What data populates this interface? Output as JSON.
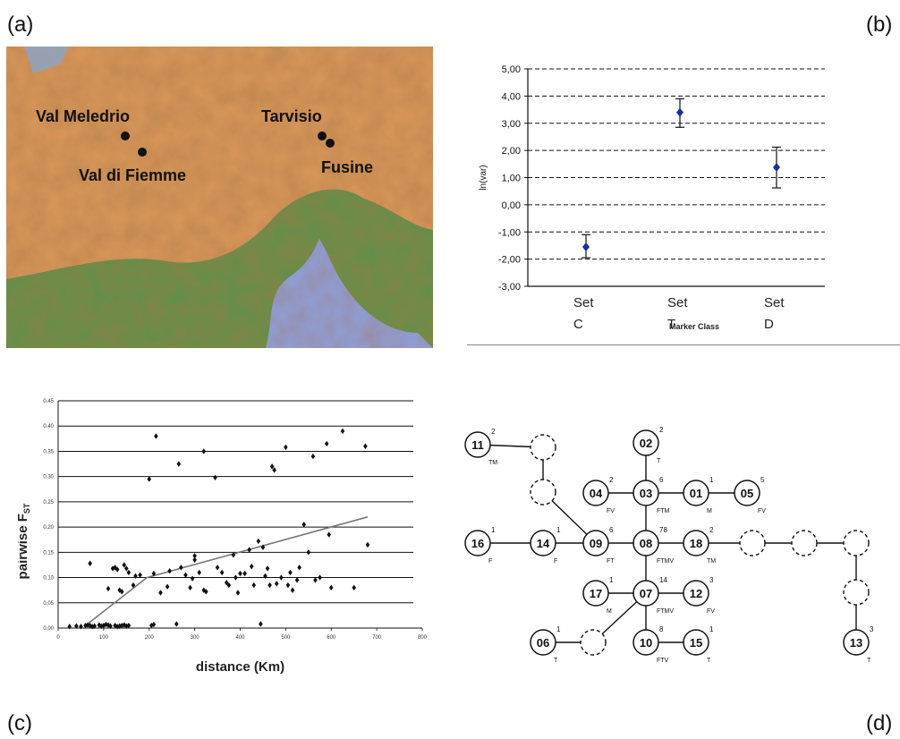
{
  "panel_labels": {
    "a": "(a)",
    "b": "(b)",
    "c": "(c)",
    "d": "(d)"
  },
  "map": {
    "places": [
      {
        "name": "Val Meledrio"
      },
      {
        "name": "Val di Fiemme"
      },
      {
        "name": "Tarvisio"
      },
      {
        "name": "Fusine"
      }
    ],
    "colors": {
      "mountain": "#d9965a",
      "plain": "#5f8f4a",
      "sea": "#8e9fd8",
      "lake": "#8aa5c8"
    }
  },
  "chart_data": [
    {
      "type": "scatter",
      "panel": "b",
      "ylabel": "ln(var)",
      "xlabel": "Marker Class",
      "categories": [
        {
          "line1": "Set",
          "line2": "C"
        },
        {
          "line1": "Set",
          "line2": "T"
        },
        {
          "line1": "Set",
          "line2": "D"
        }
      ],
      "values": [
        -1.55,
        3.4,
        1.38
      ],
      "error_low": [
        -1.95,
        2.85,
        0.62
      ],
      "error_high": [
        -1.1,
        3.9,
        2.12
      ],
      "ylim": [
        -3.0,
        5.0
      ],
      "yticks": [
        "5,00",
        "4,00",
        "3,00",
        "2,00",
        "1,00",
        "0,00",
        "-1,00",
        "-2,00",
        "-3,00"
      ],
      "grid": "dashed horizontal",
      "point_color": "#1a2f9c"
    },
    {
      "type": "scatter",
      "panel": "c",
      "xlabel": "distance (Km)",
      "ylabel": "pairwise F",
      "ylabel_sub": "ST",
      "xlim": [
        0,
        800
      ],
      "ylim": [
        0,
        0.45
      ],
      "xticks": [
        "0",
        "100",
        "200",
        "300",
        "400",
        "500",
        "600",
        "700",
        "800"
      ],
      "yticks": [
        "0.00",
        "0.05",
        "0.10",
        "0.15",
        "0.20",
        "0.25",
        "0.30",
        "0.35",
        "0.40",
        "0.45"
      ],
      "grid": "horizontal",
      "points": [
        [
          25,
          0.003
        ],
        [
          40,
          0.004
        ],
        [
          50,
          0.003
        ],
        [
          60,
          0.005
        ],
        [
          65,
          0.006
        ],
        [
          70,
          0.005
        ],
        [
          75,
          0.003
        ],
        [
          80,
          0.004
        ],
        [
          90,
          0.006
        ],
        [
          95,
          0.004
        ],
        [
          100,
          0.005
        ],
        [
          105,
          0.007
        ],
        [
          110,
          0.006
        ],
        [
          115,
          0.004
        ],
        [
          125,
          0.005
        ],
        [
          130,
          0.003
        ],
        [
          135,
          0.004
        ],
        [
          140,
          0.005
        ],
        [
          145,
          0.006
        ],
        [
          150,
          0.004
        ],
        [
          155,
          0.005
        ],
        [
          205,
          0.005
        ],
        [
          210,
          0.007
        ],
        [
          260,
          0.008
        ],
        [
          445,
          0.008
        ],
        [
          70,
          0.128
        ],
        [
          110,
          0.078
        ],
        [
          120,
          0.118
        ],
        [
          125,
          0.12
        ],
        [
          130,
          0.116
        ],
        [
          135,
          0.075
        ],
        [
          140,
          0.072
        ],
        [
          145,
          0.125
        ],
        [
          150,
          0.118
        ],
        [
          155,
          0.11
        ],
        [
          165,
          0.085
        ],
        [
          170,
          0.103
        ],
        [
          180,
          0.105
        ],
        [
          200,
          0.295
        ],
        [
          215,
          0.38
        ],
        [
          210,
          0.108
        ],
        [
          225,
          0.07
        ],
        [
          240,
          0.082
        ],
        [
          245,
          0.113
        ],
        [
          265,
          0.325
        ],
        [
          270,
          0.12
        ],
        [
          280,
          0.105
        ],
        [
          290,
          0.08
        ],
        [
          295,
          0.098
        ],
        [
          300,
          0.135
        ],
        [
          300,
          0.143
        ],
        [
          310,
          0.11
        ],
        [
          320,
          0.35
        ],
        [
          320,
          0.075
        ],
        [
          325,
          0.072
        ],
        [
          345,
          0.298
        ],
        [
          350,
          0.12
        ],
        [
          360,
          0.11
        ],
        [
          370,
          0.09
        ],
        [
          375,
          0.085
        ],
        [
          385,
          0.145
        ],
        [
          390,
          0.1
        ],
        [
          395,
          0.07
        ],
        [
          400,
          0.108
        ],
        [
          410,
          0.108
        ],
        [
          420,
          0.155
        ],
        [
          425,
          0.122
        ],
        [
          430,
          0.085
        ],
        [
          440,
          0.172
        ],
        [
          450,
          0.16
        ],
        [
          455,
          0.103
        ],
        [
          460,
          0.118
        ],
        [
          465,
          0.085
        ],
        [
          470,
          0.32
        ],
        [
          475,
          0.313
        ],
        [
          480,
          0.088
        ],
        [
          490,
          0.1
        ],
        [
          500,
          0.358
        ],
        [
          505,
          0.085
        ],
        [
          510,
          0.11
        ],
        [
          515,
          0.075
        ],
        [
          525,
          0.095
        ],
        [
          530,
          0.12
        ],
        [
          540,
          0.205
        ],
        [
          550,
          0.15
        ],
        [
          560,
          0.34
        ],
        [
          565,
          0.095
        ],
        [
          575,
          0.1
        ],
        [
          590,
          0.365
        ],
        [
          595,
          0.185
        ],
        [
          600,
          0.08
        ],
        [
          625,
          0.39
        ],
        [
          650,
          0.08
        ],
        [
          675,
          0.36
        ],
        [
          680,
          0.165
        ]
      ],
      "trend": [
        [
          60,
          0.005
        ],
        [
          195,
          0.1
        ],
        [
          680,
          0.22
        ]
      ]
    }
  ],
  "network": {
    "nodes": [
      {
        "id": "11",
        "count": "2",
        "code": "TM"
      },
      {
        "id": "02",
        "count": "2",
        "code": "T"
      },
      {
        "id": "04",
        "count": "2",
        "code": "FV"
      },
      {
        "id": "03",
        "count": "6",
        "code": "FTM"
      },
      {
        "id": "01",
        "count": "1",
        "code": "M"
      },
      {
        "id": "05",
        "count": "5",
        "code": "FV"
      },
      {
        "id": "16",
        "count": "1",
        "code": "F"
      },
      {
        "id": "14",
        "count": "1",
        "code": "F"
      },
      {
        "id": "09",
        "count": "6",
        "code": "FT"
      },
      {
        "id": "08",
        "count": "78",
        "code": "FTMV"
      },
      {
        "id": "18",
        "count": "2",
        "code": "TM"
      },
      {
        "id": "17",
        "count": "1",
        "code": "M"
      },
      {
        "id": "07",
        "count": "14",
        "code": "FTMV"
      },
      {
        "id": "12",
        "count": "3",
        "code": "FV"
      },
      {
        "id": "06",
        "count": "1",
        "code": "T"
      },
      {
        "id": "10",
        "count": "8",
        "code": "FTV"
      },
      {
        "id": "15",
        "count": "1",
        "code": "T"
      },
      {
        "id": "13",
        "count": "3",
        "code": "T"
      }
    ]
  }
}
